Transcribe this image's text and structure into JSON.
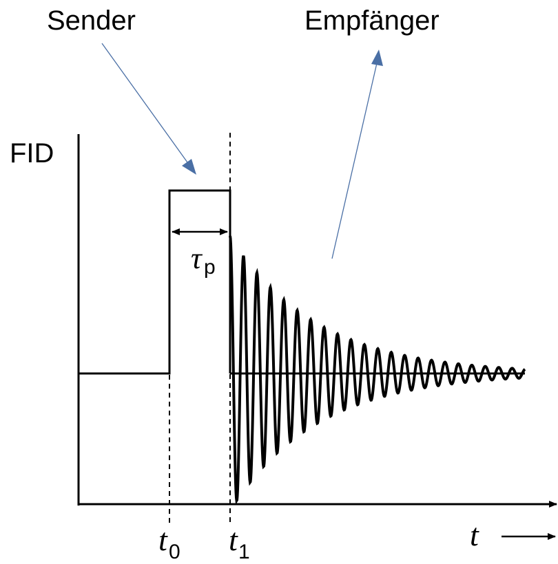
{
  "annotations": {
    "sender": "Sender",
    "receiver": "Empfänger",
    "y_axis_label": "FID",
    "pulse_width_symbol": "τ",
    "pulse_width_subscript": "p",
    "t0_symbol": "t",
    "t0_subscript": "0",
    "t1_symbol": "t",
    "t1_subscript": "1",
    "time_axis_label": "t"
  },
  "colors": {
    "pointer_arrow": "#4a6fa5",
    "signal": "#000000"
  }
}
